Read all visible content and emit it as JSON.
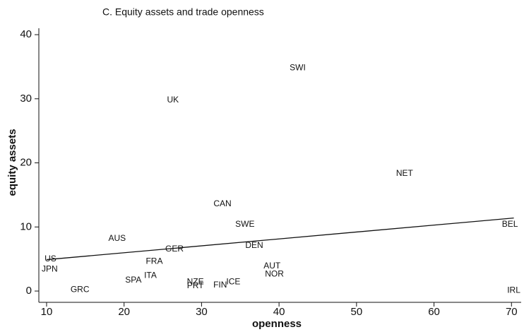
{
  "chart_data": {
    "type": "scatter",
    "title": "C. Equity assets and trade openness",
    "x_label": "openness",
    "y_label": "equity assets",
    "xlim": [
      9.0,
      71.25
    ],
    "ylim": [
      -1.76,
      41.0
    ],
    "xticks": [
      10,
      20,
      30,
      40,
      50,
      60,
      70
    ],
    "yticks": [
      0,
      10,
      20,
      30,
      40
    ],
    "points": [
      {
        "label": "SWI",
        "x": 42.4,
        "y": 34.8
      },
      {
        "label": "UK",
        "x": 26.3,
        "y": 29.8
      },
      {
        "label": "NET",
        "x": 56.2,
        "y": 18.3
      },
      {
        "label": "CAN",
        "x": 32.7,
        "y": 13.6
      },
      {
        "label": "SWE",
        "x": 35.6,
        "y": 10.4
      },
      {
        "label": "BEL",
        "x": 69.8,
        "y": 10.4
      },
      {
        "label": "AUS",
        "x": 19.1,
        "y": 8.2
      },
      {
        "label": "GER",
        "x": 26.5,
        "y": 6.5
      },
      {
        "label": "DEN",
        "x": 36.8,
        "y": 7.1
      },
      {
        "label": "US",
        "x": 10.5,
        "y": 5.0
      },
      {
        "label": "JPN",
        "x": 10.4,
        "y": 3.4
      },
      {
        "label": "FRA",
        "x": 23.9,
        "y": 4.6
      },
      {
        "label": "AUT",
        "x": 39.1,
        "y": 3.9
      },
      {
        "label": "NOR",
        "x": 39.4,
        "y": 2.6
      },
      {
        "label": "ITA",
        "x": 23.4,
        "y": 2.4
      },
      {
        "label": "SPA",
        "x": 21.2,
        "y": 1.7
      },
      {
        "label": "NZE",
        "x": 29.2,
        "y": 1.4
      },
      {
        "label": "PRT",
        "x": 29.2,
        "y": 0.8
      },
      {
        "label": "ICE",
        "x": 34.1,
        "y": 1.4
      },
      {
        "label": "FIN",
        "x": 32.4,
        "y": 0.9
      },
      {
        "label": "GRC",
        "x": 14.3,
        "y": 0.2
      },
      {
        "label": "IRL",
        "x": 70.3,
        "y": 0.1
      }
    ],
    "fit_line": {
      "x": [
        10,
        70.3
      ],
      "y": [
        4.9,
        11.4
      ]
    }
  }
}
